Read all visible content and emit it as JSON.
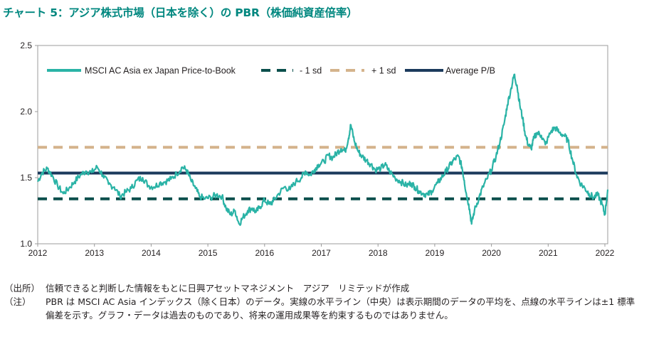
{
  "title": "チャート 5：アジア株式市場（日本を除く）の PBR（株価純資産倍率）",
  "notes": {
    "source_label": "（出所）",
    "source_text": "信頼できると判断した情報をもとに日興アセットマネジメント　アジア　リミテッドが作成",
    "note_label": "（注）",
    "note_text": "PBR は MSCI AC Asia インデックス（除く日本）のデータ。実線の水平ライン（中央）は表示期間のデータの平均を、点線の水平ラインは±1 標準偏差を示す。グラフ・データは過去のものであり、将来の運用成果等を約束するものではありません。"
  },
  "chart_data": {
    "type": "line",
    "title": "",
    "xlabel": "",
    "ylabel": "",
    "xlim": [
      2012,
      2022.05
    ],
    "ylim": [
      1.0,
      2.5
    ],
    "x_ticks": [
      "2012",
      "2013",
      "2014",
      "2015",
      "2016",
      "2017",
      "2018",
      "2019",
      "2020",
      "2021",
      "2022"
    ],
    "y_ticks": [
      "1.0",
      "1.5",
      "2.0",
      "2.5"
    ],
    "grid": false,
    "legend_position": "top-left",
    "colors": {
      "series": "#2ab3a6",
      "minus_sd": "#0b4f4c",
      "plus_sd": "#d4b38c",
      "average": "#1b3a5c"
    },
    "series": [
      {
        "name": "MSCI AC Asia ex Japan Price-to-Book",
        "style": "solid",
        "points": [
          [
            2012.0,
            1.47
          ],
          [
            2012.08,
            1.54
          ],
          [
            2012.17,
            1.57
          ],
          [
            2012.25,
            1.52
          ],
          [
            2012.35,
            1.44
          ],
          [
            2012.45,
            1.38
          ],
          [
            2012.55,
            1.42
          ],
          [
            2012.65,
            1.47
          ],
          [
            2012.75,
            1.52
          ],
          [
            2012.85,
            1.55
          ],
          [
            2012.95,
            1.54
          ],
          [
            2013.05,
            1.58
          ],
          [
            2013.15,
            1.52
          ],
          [
            2013.25,
            1.45
          ],
          [
            2013.35,
            1.43
          ],
          [
            2013.45,
            1.36
          ],
          [
            2013.55,
            1.39
          ],
          [
            2013.65,
            1.42
          ],
          [
            2013.75,
            1.48
          ],
          [
            2013.85,
            1.5
          ],
          [
            2013.95,
            1.44
          ],
          [
            2014.05,
            1.43
          ],
          [
            2014.15,
            1.46
          ],
          [
            2014.25,
            1.47
          ],
          [
            2014.35,
            1.49
          ],
          [
            2014.45,
            1.53
          ],
          [
            2014.55,
            1.58
          ],
          [
            2014.62,
            1.56
          ],
          [
            2014.7,
            1.48
          ],
          [
            2014.78,
            1.42
          ],
          [
            2014.85,
            1.36
          ],
          [
            2014.95,
            1.34
          ],
          [
            2015.05,
            1.35
          ],
          [
            2015.15,
            1.37
          ],
          [
            2015.25,
            1.36
          ],
          [
            2015.32,
            1.27
          ],
          [
            2015.4,
            1.22
          ],
          [
            2015.48,
            1.25
          ],
          [
            2015.55,
            1.15
          ],
          [
            2015.62,
            1.2
          ],
          [
            2015.7,
            1.25
          ],
          [
            2015.78,
            1.27
          ],
          [
            2015.85,
            1.24
          ],
          [
            2015.92,
            1.28
          ],
          [
            2016.0,
            1.33
          ],
          [
            2016.08,
            1.3
          ],
          [
            2016.15,
            1.32
          ],
          [
            2016.25,
            1.38
          ],
          [
            2016.35,
            1.43
          ],
          [
            2016.45,
            1.41
          ],
          [
            2016.55,
            1.47
          ],
          [
            2016.65,
            1.5
          ],
          [
            2016.72,
            1.55
          ],
          [
            2016.8,
            1.52
          ],
          [
            2016.88,
            1.56
          ],
          [
            2016.95,
            1.6
          ],
          [
            2017.05,
            1.62
          ],
          [
            2017.12,
            1.67
          ],
          [
            2017.2,
            1.65
          ],
          [
            2017.28,
            1.69
          ],
          [
            2017.35,
            1.72
          ],
          [
            2017.42,
            1.7
          ],
          [
            2017.48,
            1.8
          ],
          [
            2017.52,
            1.9
          ],
          [
            2017.58,
            1.78
          ],
          [
            2017.65,
            1.7
          ],
          [
            2017.72,
            1.66
          ],
          [
            2017.8,
            1.63
          ],
          [
            2017.88,
            1.6
          ],
          [
            2017.95,
            1.56
          ],
          [
            2018.05,
            1.57
          ],
          [
            2018.12,
            1.6
          ],
          [
            2018.2,
            1.55
          ],
          [
            2018.3,
            1.5
          ],
          [
            2018.4,
            1.47
          ],
          [
            2018.5,
            1.44
          ],
          [
            2018.58,
            1.46
          ],
          [
            2018.65,
            1.43
          ],
          [
            2018.72,
            1.4
          ],
          [
            2018.8,
            1.38
          ],
          [
            2018.88,
            1.37
          ],
          [
            2018.95,
            1.4
          ],
          [
            2019.05,
            1.46
          ],
          [
            2019.12,
            1.5
          ],
          [
            2019.2,
            1.55
          ],
          [
            2019.28,
            1.6
          ],
          [
            2019.35,
            1.64
          ],
          [
            2019.42,
            1.66
          ],
          [
            2019.48,
            1.58
          ],
          [
            2019.52,
            1.48
          ],
          [
            2019.56,
            1.37
          ],
          [
            2019.6,
            1.3
          ],
          [
            2019.65,
            1.15
          ],
          [
            2019.7,
            1.25
          ],
          [
            2019.78,
            1.35
          ],
          [
            2019.85,
            1.43
          ],
          [
            2019.92,
            1.49
          ],
          [
            2020.0,
            1.56
          ],
          [
            2020.08,
            1.66
          ],
          [
            2020.15,
            1.77
          ],
          [
            2020.22,
            1.9
          ],
          [
            2020.28,
            2.05
          ],
          [
            2020.35,
            2.18
          ],
          [
            2020.4,
            2.28
          ],
          [
            2020.45,
            2.2
          ],
          [
            2020.5,
            2.05
          ],
          [
            2020.55,
            1.95
          ],
          [
            2020.6,
            1.82
          ],
          [
            2020.65,
            1.75
          ],
          [
            2020.7,
            1.72
          ],
          [
            2020.75,
            1.8
          ],
          [
            2020.8,
            1.84
          ],
          [
            2020.88,
            1.82
          ],
          [
            2020.95,
            1.75
          ],
          [
            2021.05,
            1.85
          ],
          [
            2021.12,
            1.88
          ],
          [
            2021.2,
            1.84
          ],
          [
            2021.28,
            1.82
          ],
          [
            2021.35,
            1.78
          ],
          [
            2021.42,
            1.65
          ],
          [
            2021.5,
            1.52
          ],
          [
            2021.58,
            1.45
          ],
          [
            2021.65,
            1.42
          ],
          [
            2021.72,
            1.38
          ],
          [
            2021.8,
            1.35
          ],
          [
            2021.88,
            1.37
          ],
          [
            2021.95,
            1.3
          ],
          [
            2022.0,
            1.22
          ],
          [
            2022.05,
            1.41
          ]
        ]
      },
      {
        "name": "- 1 sd",
        "style": "dashed",
        "value": 1.34
      },
      {
        "name": "+ 1 sd",
        "style": "dashed",
        "value": 1.73
      },
      {
        "name": "Average P/B",
        "style": "solid",
        "value": 1.535
      }
    ]
  }
}
